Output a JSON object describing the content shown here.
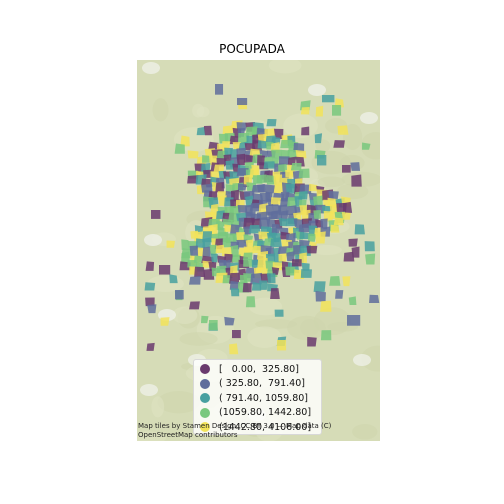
{
  "map": {
    "title": "POCUPADA",
    "attribution_line1": "Map tiles by Stamen Design, CC BY 3.0 — Map data (C)",
    "attribution_line2": "OpenStreetMap contributors",
    "basemap_color": "#d6dcb7",
    "legend": {
      "items": [
        {
          "label": "[   0.00,  325.80]",
          "color": "#6a3a6e"
        },
        {
          "label": "( 325.80,  791.40]",
          "color": "#5f6d9c"
        },
        {
          "label": "( 791.40, 1059.80]",
          "color": "#48a0a0"
        },
        {
          "label": "(1059.80, 1442.80]",
          "color": "#79c87e"
        },
        {
          "label": "(1442.80, 4106.00]",
          "color": "#f2e35a"
        }
      ]
    }
  }
}
